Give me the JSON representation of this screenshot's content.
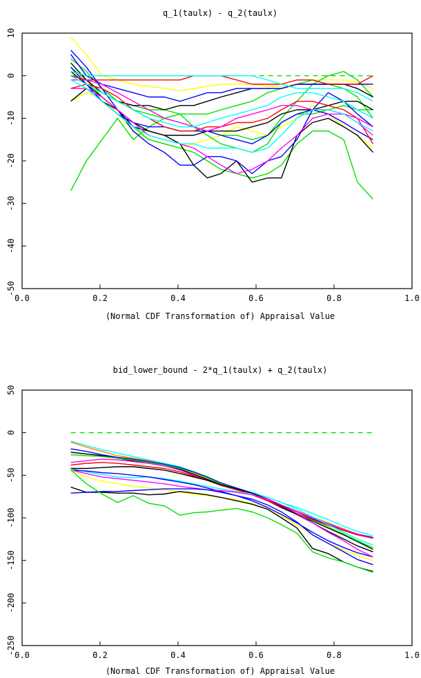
{
  "chart_data": [
    {
      "type": "line",
      "title": "q_1(taulx) - q_2(taulx)",
      "xlabel": "(Normal CDF Transformation of) Appraisal Value",
      "ylabel": "",
      "xlim": [
        0.0,
        1.0
      ],
      "ylim": [
        -50,
        10
      ],
      "xticks": [
        "0.0",
        "0.2",
        "0.4",
        "0.6",
        "0.8",
        "1.0"
      ],
      "yticks": [
        "10",
        "0",
        "-10",
        "-20",
        "-30",
        "-40",
        "-50"
      ],
      "x": [
        0.125,
        0.165,
        0.205,
        0.245,
        0.285,
        0.325,
        0.365,
        0.405,
        0.44,
        0.475,
        0.51,
        0.55,
        0.59,
        0.63,
        0.665,
        0.705,
        0.745,
        0.785,
        0.825,
        0.86,
        0.9
      ],
      "reference_line": {
        "y": 0,
        "color": "#00e000",
        "style": "dashed"
      },
      "series": [
        {
          "color": "#ffff00",
          "values": [
            9,
            5,
            0,
            -1,
            -2,
            -2.5,
            -3,
            -3.5,
            -3,
            -2.5,
            -2,
            -2,
            -2,
            -2.5,
            -2.5,
            -2,
            -1,
            -1,
            -1,
            -1.5,
            -3
          ]
        },
        {
          "color": "#ffff00",
          "values": [
            -6,
            -4,
            -5,
            -9,
            -13,
            -15,
            -16,
            -17,
            -16,
            -15,
            -14,
            -12,
            -13,
            -14,
            -12,
            -10,
            -7,
            -9,
            -12,
            -14,
            -17
          ]
        },
        {
          "color": "#00e000",
          "values": [
            -27,
            -20,
            -15,
            -10,
            -15,
            -12,
            -10,
            -9,
            -12,
            -14,
            -16,
            -17,
            -18,
            -16,
            -11,
            -9,
            -9,
            -8,
            -7,
            -8,
            -8
          ]
        },
        {
          "color": "#00e000",
          "values": [
            2,
            -1,
            -5,
            -8,
            -12,
            -15,
            -16,
            -17,
            -18,
            -20,
            -22,
            -23,
            -24,
            -23,
            -21,
            -16,
            -13,
            -13,
            -15,
            -25,
            -29
          ]
        },
        {
          "color": "#00e000",
          "values": [
            4,
            1,
            -3,
            -6,
            -8,
            -9,
            -10,
            -11,
            -12,
            -13,
            -14,
            -14,
            -15,
            -14,
            -10,
            -6,
            -2,
            0,
            1,
            -1,
            -5
          ]
        },
        {
          "color": "#00e000",
          "values": [
            0,
            -2,
            -4,
            -6,
            -7,
            -8,
            -8,
            -9,
            -9,
            -9,
            -8,
            -7,
            -6,
            -4,
            -3,
            -2,
            -1,
            -2,
            -3,
            -5,
            -10
          ]
        },
        {
          "color": "#000000",
          "values": [
            -6,
            -3,
            -6,
            -8,
            -12,
            -13,
            -14,
            -16,
            -21,
            -24,
            -23,
            -20,
            -25,
            -24,
            -24,
            -14,
            -11,
            -10,
            -12,
            -14,
            -18
          ]
        },
        {
          "color": "#000000",
          "values": [
            3,
            -1,
            -4,
            -6,
            -7,
            -7,
            -8,
            -7,
            -7,
            -6,
            -5,
            -4,
            -3,
            -3,
            -3,
            -2,
            -2,
            -2,
            -2,
            -3,
            -5
          ]
        },
        {
          "color": "#000000",
          "values": [
            1,
            -2,
            -5,
            -8,
            -11,
            -13,
            -14,
            -14,
            -14,
            -13,
            -13,
            -13,
            -12,
            -11,
            -9,
            -8,
            -8,
            -7,
            -6,
            -6,
            -8
          ]
        },
        {
          "color": "#0000ff",
          "values": [
            6,
            2,
            -3,
            -8,
            -13,
            -16,
            -18,
            -21,
            -21,
            -19,
            -19,
            -20,
            -23,
            -20,
            -19,
            -15,
            -8,
            -4,
            -6,
            -9,
            -12
          ]
        },
        {
          "color": "#0000ff",
          "values": [
            5,
            0,
            -2,
            -3,
            -4,
            -5,
            -5,
            -6,
            -5,
            -4,
            -4,
            -3,
            -3,
            -3,
            -3,
            -2,
            -2,
            -2,
            -2,
            -2,
            -2
          ]
        },
        {
          "color": "#0000ff",
          "values": [
            2,
            -2,
            -6,
            -9,
            -11,
            -12,
            -12,
            -13,
            -13,
            -13,
            -14,
            -15,
            -16,
            -14,
            -11,
            -9,
            -8,
            -9,
            -11,
            -13,
            -15
          ]
        },
        {
          "color": "#ff0000",
          "values": [
            -3,
            -2,
            -3,
            -5,
            -8,
            -10,
            -12,
            -13,
            -13,
            -12,
            -12,
            -11,
            -11,
            -10,
            -8,
            -6,
            -6,
            -7,
            -8,
            -10,
            -16
          ]
        },
        {
          "color": "#ff0000",
          "values": [
            0,
            -1,
            -1,
            -1,
            -1,
            -1,
            -1,
            -1,
            0,
            0,
            0,
            -1,
            -2,
            -2,
            -2,
            -1,
            -1,
            -2,
            -2,
            -2,
            0
          ]
        },
        {
          "color": "#ff00ff",
          "values": [
            -1,
            -1,
            -2,
            -4,
            -6,
            -8,
            -10,
            -11,
            -12,
            -13,
            -12,
            -10,
            -9,
            -8,
            -7,
            -7,
            -8,
            -8,
            -9,
            -11,
            -14
          ]
        },
        {
          "color": "#ff00ff",
          "values": [
            -3,
            -3,
            -5,
            -8,
            -11,
            -14,
            -15,
            -16,
            -17,
            -19,
            -21,
            -23,
            -22,
            -20,
            -17,
            -14,
            -10,
            -9,
            -9,
            -10,
            -12
          ]
        },
        {
          "color": "#00ffff",
          "values": [
            1,
            0,
            0,
            0,
            0,
            0,
            0,
            0,
            0,
            0,
            0,
            0,
            0,
            -1,
            -2,
            -3,
            -3,
            -3,
            -3,
            -4,
            -6
          ]
        },
        {
          "color": "#00ffff",
          "values": [
            0,
            -2,
            -4,
            -6,
            -8,
            -10,
            -11,
            -12,
            -12,
            -11,
            -10,
            -9,
            -8,
            -7,
            -5,
            -4,
            -4,
            -5,
            -6,
            -8,
            -10
          ]
        },
        {
          "color": "#00ffff",
          "values": [
            -1,
            -3,
            -6,
            -9,
            -12,
            -14,
            -15,
            -16,
            -16,
            -17,
            -17,
            -17,
            -18,
            -17,
            -14,
            -10,
            -8,
            -8,
            -9,
            -11,
            -13
          ]
        }
      ]
    },
    {
      "type": "line",
      "title": "bid_lower_bound - 2*q_1(taulx) + q_2(taulx)",
      "xlabel": "(Normal CDF Transformation of) Appraisal Value",
      "ylabel": "",
      "xlim": [
        0.0,
        1.0
      ],
      "ylim": [
        -250,
        50
      ],
      "xticks": [
        "0.0",
        "0.2",
        "0.4",
        "0.6",
        "0.8",
        "1.0"
      ],
      "yticks": [
        "50",
        "0",
        "-50",
        "-100",
        "-150",
        "-200",
        "-250"
      ],
      "x": [
        0.125,
        0.165,
        0.205,
        0.245,
        0.285,
        0.325,
        0.365,
        0.405,
        0.44,
        0.475,
        0.51,
        0.55,
        0.59,
        0.63,
        0.665,
        0.705,
        0.745,
        0.785,
        0.825,
        0.86,
        0.9
      ],
      "reference_line": {
        "y": 0,
        "color": "#00e000",
        "style": "dashed"
      },
      "series": [
        {
          "color": "#00ffff",
          "values": [
            -10,
            -15,
            -20,
            -24,
            -28,
            -32,
            -36,
            -40,
            -46,
            -52,
            -60,
            -66,
            -70,
            -76,
            -82,
            -88,
            -95,
            -102,
            -110,
            -116,
            -121
          ]
        },
        {
          "color": "#ff8000",
          "values": [
            -11,
            -17,
            -22,
            -27,
            -30,
            -33,
            -37,
            -42,
            -48,
            -54,
            -61,
            -66,
            -71,
            -78,
            -85,
            -92,
            -99,
            -106,
            -113,
            -119,
            -124
          ]
        },
        {
          "color": "#0000ff",
          "values": [
            -19,
            -22,
            -26,
            -29,
            -31,
            -34,
            -37,
            -41,
            -46,
            -52,
            -59,
            -65,
            -71,
            -78,
            -85,
            -93,
            -101,
            -108,
            -114,
            -119,
            -123
          ]
        },
        {
          "color": "#000000",
          "values": [
            -23,
            -25,
            -27,
            -30,
            -33,
            -36,
            -39,
            -43,
            -49,
            -55,
            -61,
            -67,
            -72,
            -80,
            -88,
            -96,
            -104,
            -112,
            -120,
            -128,
            -137
          ]
        },
        {
          "color": "#00e000",
          "values": [
            -26,
            -27,
            -28,
            -30,
            -32,
            -35,
            -38,
            -42,
            -47,
            -53,
            -60,
            -66,
            -72,
            -79,
            -87,
            -95,
            -103,
            -111,
            -119,
            -127,
            -135
          ]
        },
        {
          "color": "#ff00ff",
          "values": [
            -35,
            -33,
            -31,
            -32,
            -34,
            -36,
            -39,
            -44,
            -50,
            -56,
            -62,
            -67,
            -72,
            -79,
            -86,
            -93,
            -100,
            -107,
            -114,
            -119,
            -124
          ]
        },
        {
          "color": "#ff0000",
          "values": [
            -38,
            -36,
            -35,
            -36,
            -38,
            -40,
            -42,
            -46,
            -51,
            -56,
            -62,
            -67,
            -73,
            -80,
            -87,
            -95,
            -102,
            -109,
            -115,
            -120,
            -124
          ]
        },
        {
          "color": "#00ffff",
          "values": [
            -42,
            -46,
            -49,
            -52,
            -53,
            -52,
            -54,
            -57,
            -60,
            -63,
            -66,
            -69,
            -72,
            -76,
            -82,
            -90,
            -99,
            -108,
            -117,
            -125,
            -132
          ]
        },
        {
          "color": "#000000",
          "values": [
            -42,
            -42,
            -41,
            -40,
            -40,
            -42,
            -44,
            -48,
            -52,
            -56,
            -61,
            -66,
            -71,
            -78,
            -86,
            -96,
            -106,
            -116,
            -125,
            -133,
            -140
          ]
        },
        {
          "color": "#0000ff",
          "values": [
            -44,
            -45,
            -47,
            -48,
            -50,
            -52,
            -55,
            -58,
            -61,
            -65,
            -69,
            -74,
            -80,
            -88,
            -96,
            -106,
            -117,
            -127,
            -135,
            -141,
            -146
          ]
        },
        {
          "color": "#ff00ff",
          "values": [
            -44,
            -48,
            -52,
            -54,
            -56,
            -58,
            -60,
            -63,
            -65,
            -67,
            -68,
            -70,
            -73,
            -78,
            -85,
            -95,
            -106,
            -117,
            -127,
            -137,
            -146
          ]
        },
        {
          "color": "#ffff00",
          "values": [
            -44,
            -52,
            -57,
            -60,
            -63,
            -65,
            -67,
            -70,
            -72,
            -74,
            -76,
            -79,
            -83,
            -90,
            -98,
            -108,
            -120,
            -130,
            -138,
            -144,
            -150
          ]
        },
        {
          "color": "#000000",
          "values": [
            -64,
            -70,
            -70,
            -71,
            -71,
            -73,
            -72,
            -69,
            -71,
            -73,
            -76,
            -80,
            -84,
            -90,
            -100,
            -112,
            -136,
            -142,
            -152,
            -158,
            -163
          ]
        },
        {
          "color": "#0000ff",
          "values": [
            -71,
            -70,
            -69,
            -69,
            -68,
            -67,
            -66,
            -66,
            -66,
            -67,
            -70,
            -74,
            -78,
            -85,
            -93,
            -105,
            -120,
            -130,
            -140,
            -149,
            -155
          ]
        },
        {
          "color": "#00e000",
          "values": [
            -44,
            -60,
            -72,
            -82,
            -74,
            -83,
            -86,
            -97,
            -94,
            -93,
            -91,
            -89,
            -93,
            -100,
            -108,
            -118,
            -140,
            -147,
            -152,
            -158,
            -164
          ]
        }
      ]
    }
  ]
}
